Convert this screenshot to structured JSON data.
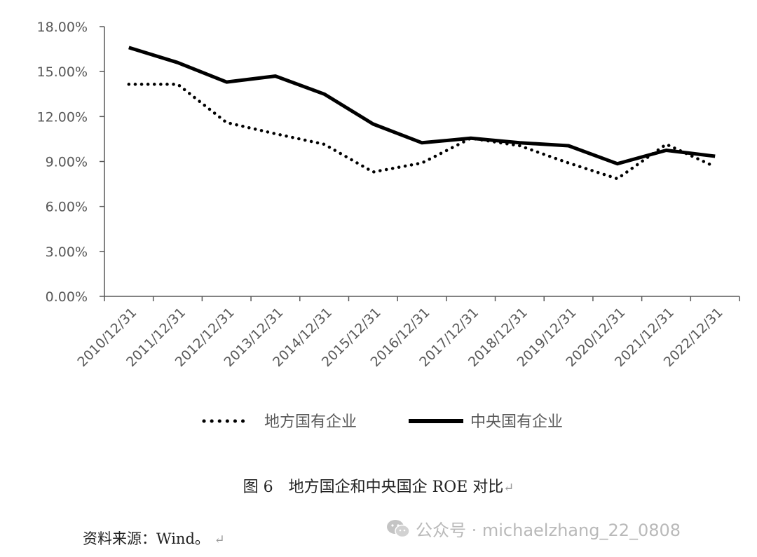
{
  "chart_data": {
    "type": "line",
    "categories": [
      "2010/12/31",
      "2011/12/31",
      "2012/12/31",
      "2013/12/31",
      "2014/12/31",
      "2015/12/31",
      "2016/12/31",
      "2017/12/31",
      "2018/12/31",
      "2019/12/31",
      "2020/12/31",
      "2021/12/31",
      "2022/12/31"
    ],
    "series": [
      {
        "name": "地方国有企业",
        "style": "dotted",
        "color": "#000000",
        "values": [
          14.15,
          14.15,
          11.6,
          10.85,
          10.15,
          8.3,
          8.9,
          10.55,
          10.05,
          8.9,
          7.85,
          10.15,
          8.65
        ]
      },
      {
        "name": "中央国有企业",
        "style": "solid",
        "color": "#000000",
        "values": [
          16.6,
          15.6,
          14.3,
          14.7,
          13.5,
          11.5,
          10.25,
          10.55,
          10.25,
          10.05,
          8.85,
          9.75,
          9.35
        ]
      }
    ],
    "y_ticks": [
      "0.00%",
      "3.00%",
      "6.00%",
      "9.00%",
      "12.00%",
      "15.00%",
      "18.00%"
    ],
    "ylim": [
      0,
      18
    ],
    "y_unit": "%",
    "grid": false,
    "legend_position": "bottom",
    "title": "",
    "xlabel": "",
    "ylabel": ""
  },
  "caption": {
    "text": "图 6　地方国企和中央国企 ROE 对比",
    "return_mark": "↵"
  },
  "source": {
    "text": "资料来源：Wind。",
    "return_mark": "↵"
  },
  "watermark": {
    "text": "公众号 · michaelzhang_22_0808",
    "icon": "wechat-icon"
  }
}
